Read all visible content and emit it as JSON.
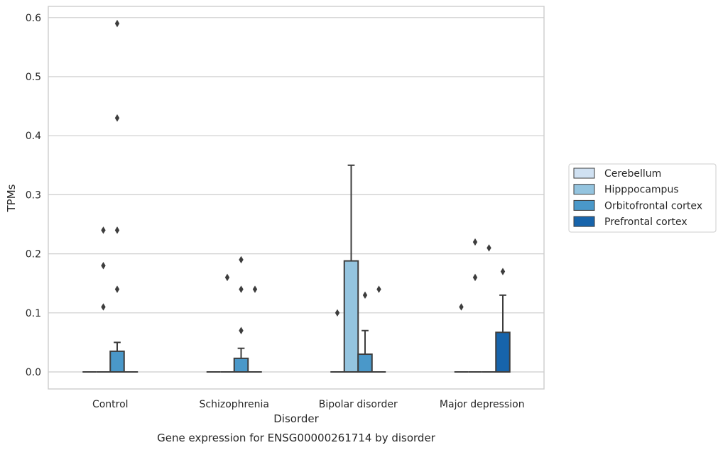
{
  "chart_data": {
    "type": "box",
    "title": "",
    "caption": "Gene expression for ENSG00000261714 by disorder",
    "xlabel": "Disorder",
    "ylabel": "TPMs",
    "ylim": [
      -0.028,
      0.62
    ],
    "yticks": [
      "0.0",
      "0.1",
      "0.2",
      "0.3",
      "0.4",
      "0.5",
      "0.6"
    ],
    "grid": "horizontal",
    "legend_position": "right",
    "categories": [
      "Control",
      "Schizophrenia",
      "Bipolar disorder",
      "Major depression"
    ],
    "series": [
      {
        "name": "Cerebellum",
        "color": "#d0e1f2",
        "boxes": [
          {
            "category": "Control",
            "q1": 0,
            "median": 0,
            "q3": 0,
            "whisker_low": 0,
            "whisker_high": 0,
            "outliers": []
          },
          {
            "category": "Schizophrenia",
            "q1": 0,
            "median": 0,
            "q3": 0,
            "whisker_low": 0,
            "whisker_high": 0,
            "outliers": []
          },
          {
            "category": "Bipolar disorder",
            "q1": 0,
            "median": 0,
            "q3": 0,
            "whisker_low": 0,
            "whisker_high": 0,
            "outliers": [
              0.1
            ]
          },
          {
            "category": "Major depression",
            "q1": 0,
            "median": 0,
            "q3": 0,
            "whisker_low": 0,
            "whisker_high": 0,
            "outliers": [
              0.11
            ]
          }
        ]
      },
      {
        "name": "Hipppocampus",
        "color": "#94c4df",
        "boxes": [
          {
            "category": "Control",
            "q1": 0,
            "median": 0,
            "q3": 0,
            "whisker_low": 0,
            "whisker_high": 0,
            "outliers": [
              0.11,
              0.18,
              0.24
            ]
          },
          {
            "category": "Schizophrenia",
            "q1": 0,
            "median": 0,
            "q3": 0,
            "whisker_low": 0,
            "whisker_high": 0,
            "outliers": [
              0.16
            ]
          },
          {
            "category": "Bipolar disorder",
            "q1": 0,
            "median": 0,
            "q3": 0.188,
            "whisker_low": 0,
            "whisker_high": 0.35,
            "outliers": []
          },
          {
            "category": "Major depression",
            "q1": 0,
            "median": 0,
            "q3": 0,
            "whisker_low": 0,
            "whisker_high": 0,
            "outliers": [
              0.16,
              0.22
            ]
          }
        ]
      },
      {
        "name": "Orbitofrontal cortex",
        "color": "#4a98c9",
        "boxes": [
          {
            "category": "Control",
            "q1": 0,
            "median": 0,
            "q3": 0.035,
            "whisker_low": 0,
            "whisker_high": 0.05,
            "outliers": [
              0.14,
              0.24,
              0.43,
              0.59
            ]
          },
          {
            "category": "Schizophrenia",
            "q1": 0,
            "median": 0,
            "q3": 0.023,
            "whisker_low": 0,
            "whisker_high": 0.04,
            "outliers": [
              0.07,
              0.14,
              0.19
            ]
          },
          {
            "category": "Bipolar disorder",
            "q1": 0,
            "median": 0,
            "q3": 0.03,
            "whisker_low": 0,
            "whisker_high": 0.07,
            "outliers": [
              0.13
            ]
          },
          {
            "category": "Major depression",
            "q1": 0,
            "median": 0,
            "q3": 0,
            "whisker_low": 0,
            "whisker_high": 0,
            "outliers": [
              0.21
            ]
          }
        ]
      },
      {
        "name": "Prefrontal cortex",
        "color": "#1764ab",
        "boxes": [
          {
            "category": "Control",
            "q1": 0,
            "median": 0,
            "q3": 0,
            "whisker_low": 0,
            "whisker_high": 0,
            "outliers": []
          },
          {
            "category": "Schizophrenia",
            "q1": 0,
            "median": 0,
            "q3": 0,
            "whisker_low": 0,
            "whisker_high": 0,
            "outliers": [
              0.14
            ]
          },
          {
            "category": "Bipolar disorder",
            "q1": 0,
            "median": 0,
            "q3": 0,
            "whisker_low": 0,
            "whisker_high": 0,
            "outliers": [
              0.14
            ]
          },
          {
            "category": "Major depression",
            "q1": 0,
            "median": 0,
            "q3": 0.067,
            "whisker_low": 0,
            "whisker_high": 0.13,
            "outliers": [
              0.17
            ]
          }
        ]
      }
    ]
  },
  "colors": {
    "grid": "#cccccc",
    "frame": "#cccccc",
    "stroke": "#3d3d3d",
    "text": "#262626"
  }
}
